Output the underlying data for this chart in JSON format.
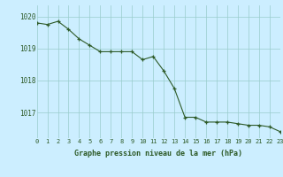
{
  "x": [
    0,
    1,
    2,
    3,
    4,
    5,
    6,
    7,
    8,
    9,
    10,
    11,
    12,
    13,
    14,
    15,
    16,
    17,
    18,
    19,
    20,
    21,
    22,
    23
  ],
  "y": [
    1019.8,
    1019.75,
    1019.85,
    1019.6,
    1019.3,
    1019.1,
    1018.9,
    1018.9,
    1018.9,
    1018.9,
    1018.65,
    1018.75,
    1018.3,
    1017.75,
    1016.85,
    1016.85,
    1016.7,
    1016.7,
    1016.7,
    1016.65,
    1016.6,
    1016.6,
    1016.55,
    1016.4
  ],
  "line_color": "#2d5a27",
  "marker": "+",
  "marker_color": "#2d5a27",
  "bg_color": "#cceeff",
  "grid_color": "#99cccc",
  "ylabel_ticks": [
    1017,
    1018,
    1019,
    1020
  ],
  "ylim": [
    1016.2,
    1020.35
  ],
  "xlim": [
    0,
    23
  ],
  "xlabel": "Graphe pression niveau de la mer (hPa)",
  "tick_color": "#2d5a27",
  "label_color": "#2d5a27",
  "tick_fontsize": 5.0,
  "xlabel_fontsize": 6.0
}
